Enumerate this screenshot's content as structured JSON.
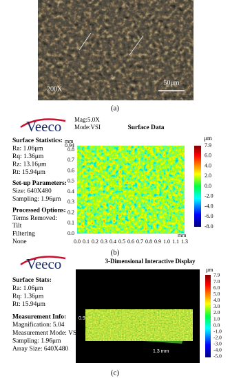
{
  "panel_a": {
    "magnification": "200X",
    "scale_bar": "50μm",
    "caption": "(a)"
  },
  "panel_b": {
    "logo": "Veeco",
    "mag": "Mag:5.0X",
    "mode": "Mode:VSI",
    "title": "Surface Data",
    "sections": [
      {
        "heading": "Surface Statistics:",
        "lines": [
          "Ra: 1.06μm",
          "Rq: 1.36μm",
          "Rz: 13.16μm",
          "Rt: 15.94μm"
        ]
      },
      {
        "heading": "Set-up Parameters:",
        "lines": [
          "Size: 640X480",
          "Sampling: 1.96μm"
        ]
      },
      {
        "heading": "Processed Options:",
        "lines": [
          "Terms Removed:",
          "Tilt",
          "Filtering",
          "None"
        ]
      }
    ],
    "y_unit": "mm",
    "y_ticks": [
      "0.94",
      "0.8",
      "0.7",
      "0.6",
      "0.5",
      "0.4",
      "0.3",
      "0.2",
      "0.1",
      "0.0"
    ],
    "x_unit": "mm",
    "x_ticks": [
      "0.0",
      "0.1",
      "0.2",
      "0.3",
      "0.4",
      "0.5",
      "0.6",
      "0.7",
      "0.8",
      "0.9",
      "1.0",
      "1.1",
      "1.3"
    ],
    "colorbar_unit": "μm",
    "colorbar_ticks": [
      "7.9",
      "6.0",
      "4.0",
      "2.0",
      "0.0",
      "-2.0",
      "-4.0",
      "-6.0",
      "-8.0"
    ],
    "caption": "(b)"
  },
  "panel_c": {
    "logo": "Veeco",
    "title": "3-Dimensional Interactive Display",
    "sections": [
      {
        "heading": "Surface Stats:",
        "lines": [
          "Ra: 1.06μm",
          "Rq: 1.36μm",
          "Rt: 15.94μm"
        ]
      },
      {
        "heading": "Measurement Info:",
        "lines": [
          "Magnification: 5.04",
          "Measurement Mode: VSI",
          "Sampling: 1.96μm",
          "Array Size: 640X480"
        ]
      }
    ],
    "axis_y": "0.9",
    "axis_x": "1.3 mm",
    "colorbar_unit": "μm",
    "colorbar_ticks": [
      "7.9",
      "7.0",
      "6.0",
      "5.0",
      "4.0",
      "3.0",
      "2.0",
      "1.0",
      "0.0",
      "-1.0",
      "-2.0",
      "-3.0",
      "-4.0",
      "-5.0"
    ],
    "caption": "(c)"
  }
}
